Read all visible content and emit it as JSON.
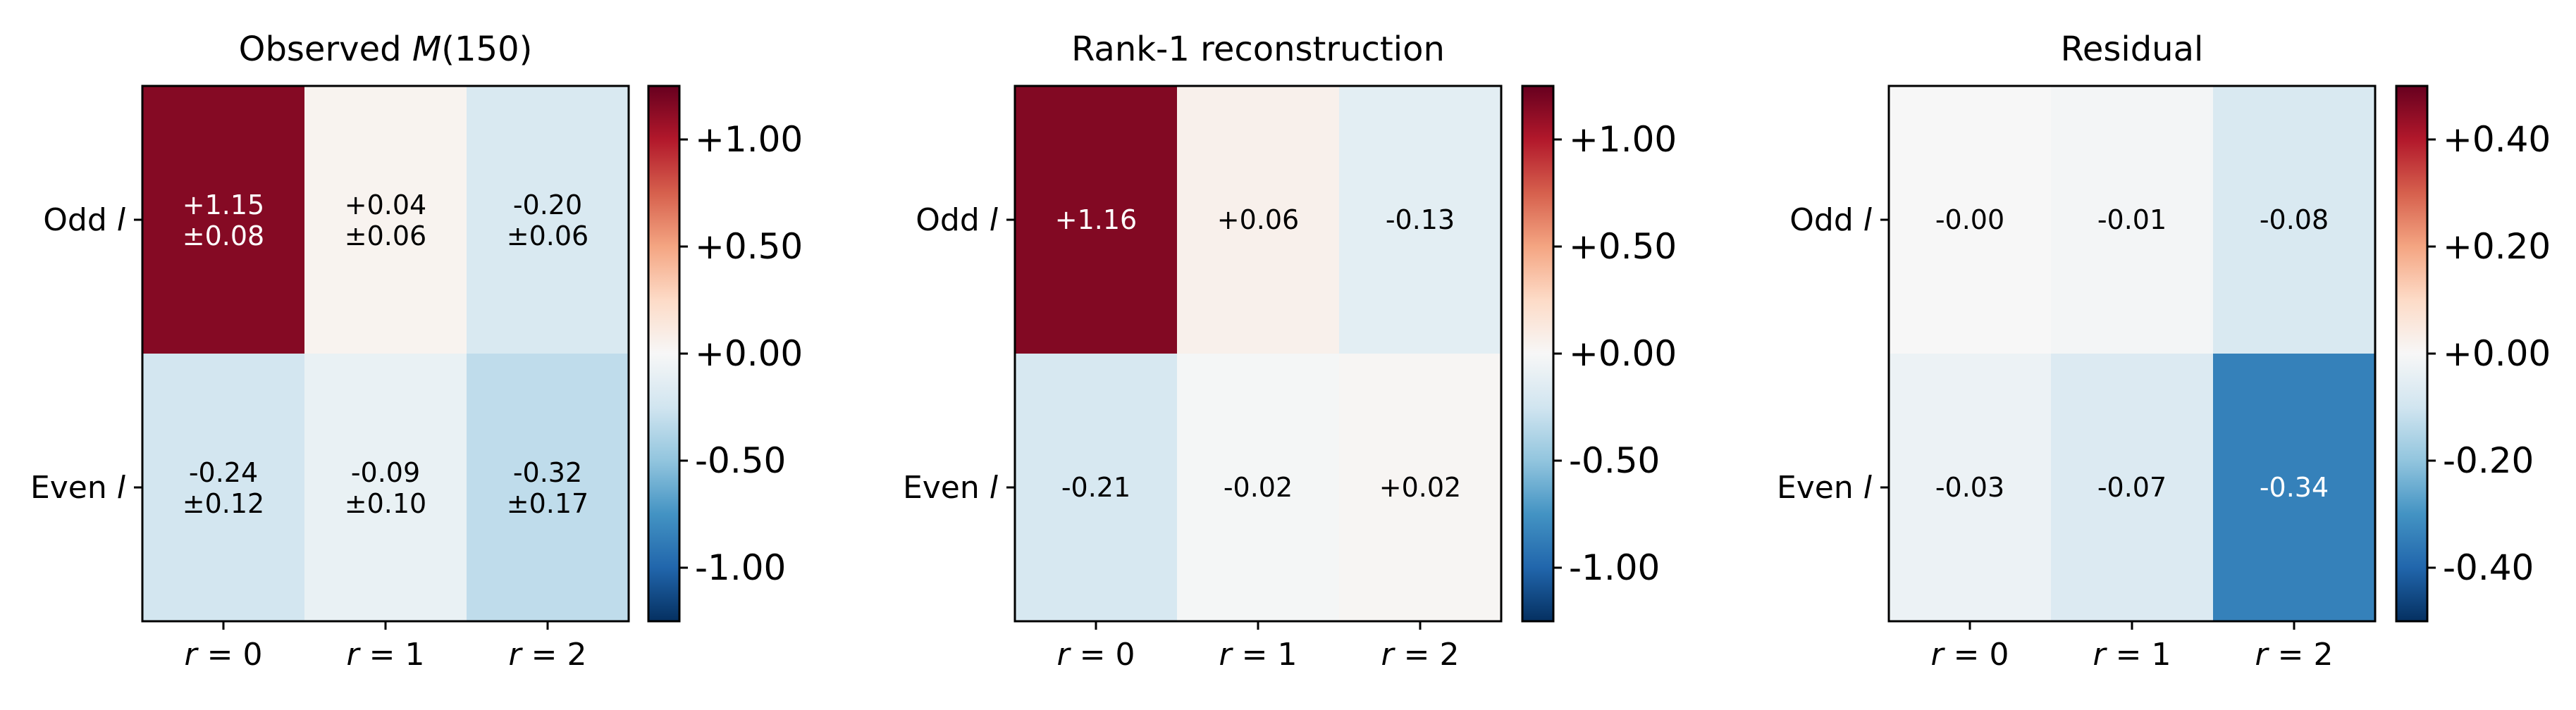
{
  "chart_data": [
    {
      "type": "heatmap",
      "title_prefix": "Observed ",
      "title_var": "M",
      "title_suffix": "(150)",
      "rows": [
        "Odd",
        "Even"
      ],
      "row_var": "l",
      "cols": [
        "0",
        "1",
        "2"
      ],
      "col_var": "r",
      "values": [
        [
          1.15,
          0.04,
          -0.2
        ],
        [
          -0.24,
          -0.09,
          -0.32
        ]
      ],
      "labels": [
        [
          "+1.15",
          "+0.04",
          "-0.20"
        ],
        [
          "-0.24",
          "-0.09",
          "-0.32"
        ]
      ],
      "errors": [
        [
          "±0.08",
          "±0.06",
          "±0.06"
        ],
        [
          "±0.12",
          "±0.10",
          "±0.17"
        ]
      ],
      "colormap": "RdBu_r",
      "vlim": [
        -1.25,
        1.25
      ],
      "colorbar_ticks": [
        1.0,
        0.5,
        0.0,
        -0.5,
        -1.0
      ],
      "colorbar_labels": [
        "+1.00",
        "+0.50",
        "+0.00",
        "-0.50",
        "-1.00"
      ]
    },
    {
      "type": "heatmap",
      "title_prefix": "Rank-1 reconstruction",
      "rows": [
        "Odd",
        "Even"
      ],
      "row_var": "l",
      "cols": [
        "0",
        "1",
        "2"
      ],
      "col_var": "r",
      "values": [
        [
          1.16,
          0.06,
          -0.13
        ],
        [
          -0.21,
          -0.02,
          0.02
        ]
      ],
      "labels": [
        [
          "+1.16",
          "+0.06",
          "-0.13"
        ],
        [
          "-0.21",
          "-0.02",
          "+0.02"
        ]
      ],
      "colormap": "RdBu_r",
      "vlim": [
        -1.25,
        1.25
      ],
      "colorbar_ticks": [
        1.0,
        0.5,
        0.0,
        -0.5,
        -1.0
      ],
      "colorbar_labels": [
        "+1.00",
        "+0.50",
        "+0.00",
        "-0.50",
        "-1.00"
      ]
    },
    {
      "type": "heatmap",
      "title_prefix": "Residual",
      "rows": [
        "Odd",
        "Even"
      ],
      "row_var": "l",
      "cols": [
        "0",
        "1",
        "2"
      ],
      "col_var": "r",
      "values": [
        [
          -0.0,
          -0.01,
          -0.08
        ],
        [
          -0.03,
          -0.07,
          -0.34
        ]
      ],
      "labels": [
        [
          "-0.00",
          "-0.01",
          "-0.08"
        ],
        [
          "-0.03",
          "-0.07",
          "-0.34"
        ]
      ],
      "colormap": "RdBu_r",
      "vlim": [
        -0.5,
        0.5
      ],
      "colorbar_ticks": [
        0.4,
        0.2,
        0.0,
        -0.2,
        -0.4
      ],
      "colorbar_labels": [
        "+0.40",
        "+0.20",
        "+0.00",
        "-0.20",
        "-0.40"
      ]
    }
  ]
}
